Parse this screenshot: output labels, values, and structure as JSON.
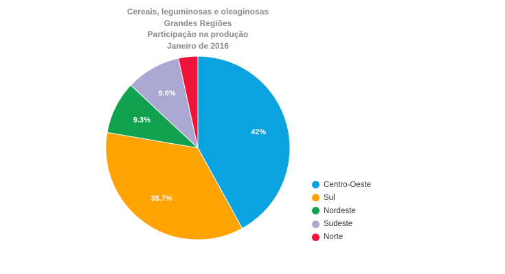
{
  "chart_data": {
    "type": "pie",
    "title_lines": [
      "Cereais, leguminosas e oleaginosas",
      "Grandes Regiões",
      "Participação na produção",
      "Janeiro de 2016"
    ],
    "categories": [
      "Centro-Oeste",
      "Sul",
      "Nordeste",
      "Sudeste",
      "Norte"
    ],
    "values": [
      42,
      35.7,
      9.3,
      9.6,
      3.4
    ],
    "data_labels": [
      "42%",
      "35.7%",
      "9.3%",
      "9.6%",
      ""
    ],
    "colors": [
      "#0aa3df",
      "#ffa305",
      "#12a14e",
      "#aaa7d3",
      "#ef1439"
    ],
    "legend_position": "right"
  }
}
